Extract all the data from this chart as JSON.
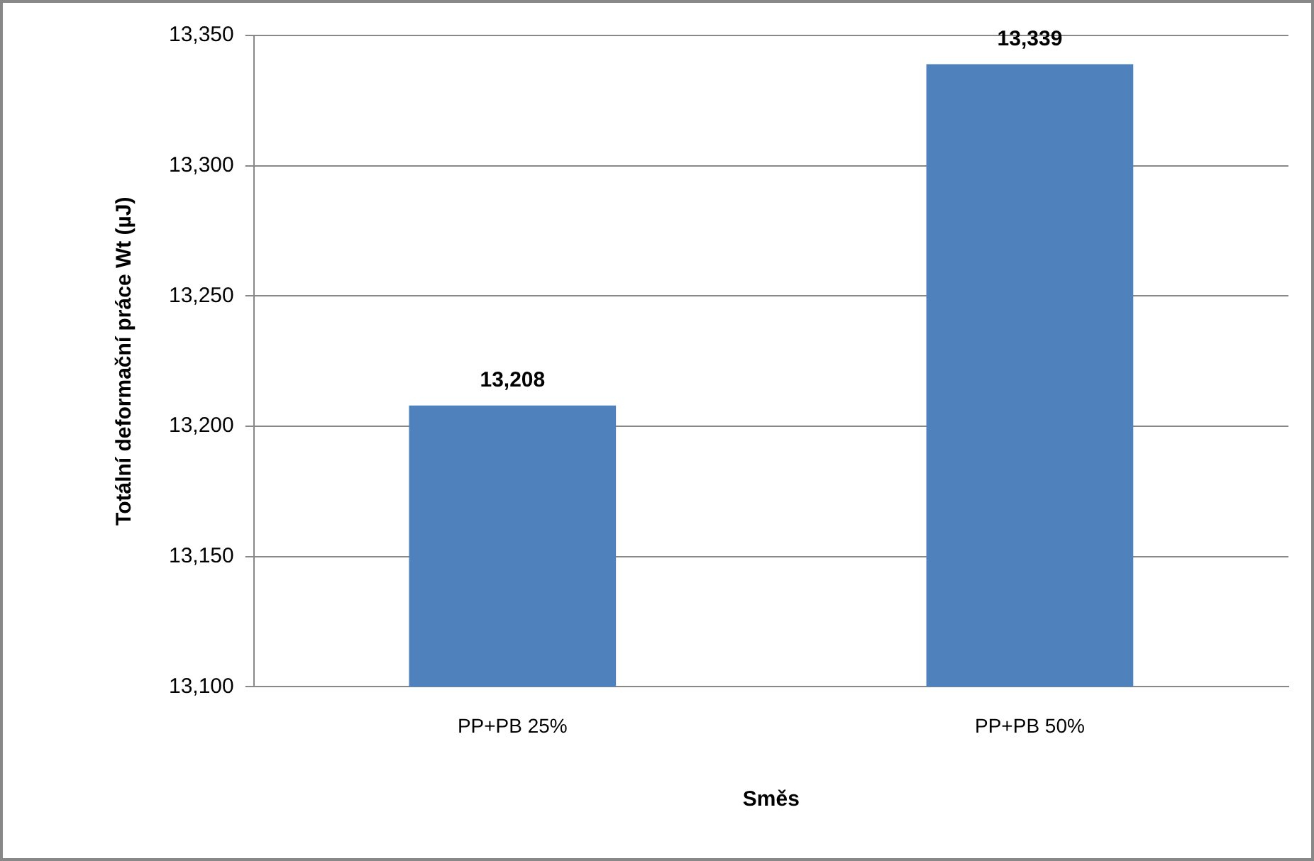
{
  "chart_data": {
    "type": "bar",
    "xlabel": "Směs",
    "ylabel": "Totální deformační práce Wt (µJ)",
    "categories": [
      "PP+PB 25%",
      "PP+PB 50%"
    ],
    "values": [
      13208,
      13339
    ],
    "value_labels": [
      "13,208",
      "13,339"
    ],
    "color": "#4f81bd",
    "ylim": [
      13100,
      13350
    ],
    "yticks": [
      {
        "value": 13100,
        "label": "13,100"
      },
      {
        "value": 13150,
        "label": "13,150"
      },
      {
        "value": 13200,
        "label": "13,200"
      },
      {
        "value": 13250,
        "label": "13,250"
      },
      {
        "value": 13300,
        "label": "13,300"
      },
      {
        "value": 13350,
        "label": "13,350"
      }
    ],
    "grid": "y",
    "legend": false
  }
}
